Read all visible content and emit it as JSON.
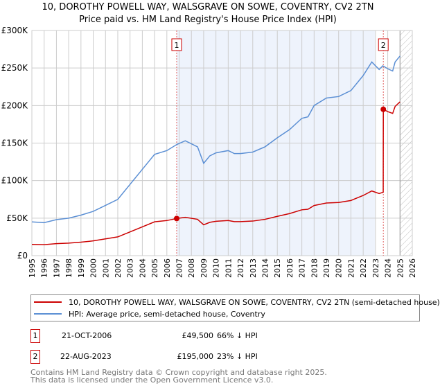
{
  "title": "10, DOROTHY POWELL WAY, WALSGRAVE ON SOWE, COVENTRY, CV2 2TN",
  "subtitle": "Price paid vs. HM Land Registry's House Price Index (HPI)",
  "chart_data": {
    "type": "line",
    "title": "10, DOROTHY POWELL WAY, WALSGRAVE ON SOWE, COVENTRY, CV2 2TN",
    "subtitle": "Price paid vs. HM Land Registry's House Price Index (HPI)",
    "xlim": [
      1995,
      2026
    ],
    "ylim": [
      0,
      300000
    ],
    "yticks": [
      0,
      50000,
      100000,
      150000,
      200000,
      250000,
      300000
    ],
    "ytick_labels": [
      "£0",
      "£50K",
      "£100K",
      "£150K",
      "£200K",
      "£250K",
      "£300K"
    ],
    "xticks": [
      "1995",
      "1996",
      "1997",
      "1998",
      "1999",
      "2000",
      "2001",
      "2002",
      "2003",
      "2004",
      "2005",
      "2006",
      "2007",
      "2008",
      "2009",
      "2010",
      "2011",
      "2012",
      "2013",
      "2014",
      "2015",
      "2016",
      "2017",
      "2018",
      "2019",
      "2020",
      "2021",
      "2022",
      "2023",
      "2024",
      "2025",
      "2026"
    ],
    "grid": true,
    "shaded_range": [
      2006.8,
      2022.95
    ],
    "hatched_from": 2025.0,
    "colors": {
      "price": "#cc0000",
      "hpi": "#5b8fd4",
      "shade": "#eef3fc"
    },
    "series": [
      {
        "name": "10, DOROTHY POWELL WAY, WALSGRAVE ON SOWE, COVENTRY, CV2 2TN (semi-detached house)",
        "x": [
          1995,
          1996,
          1997,
          1998,
          1999,
          2000,
          2001,
          2002,
          2003,
          2004,
          2005,
          2006,
          2006.8,
          2007.5,
          2008.5,
          2009,
          2009.5,
          2010,
          2011,
          2011.5,
          2012,
          2013,
          2014,
          2015,
          2016,
          2017,
          2017.5,
          2018,
          2019,
          2020,
          2021,
          2022,
          2022.7,
          2023.3,
          2023.63,
          2023.64,
          2024,
          2024.4,
          2024.6,
          2025
        ],
        "y": [
          15000,
          14700,
          16000,
          16700,
          18000,
          19700,
          22400,
          25000,
          31700,
          38400,
          45100,
          46800,
          49500,
          51100,
          48400,
          41100,
          44400,
          45800,
          46800,
          45400,
          45400,
          46100,
          48400,
          52400,
          56100,
          61100,
          61800,
          66800,
          70100,
          70800,
          73500,
          80200,
          86200,
          82800,
          84500,
          195000,
          191900,
          189500,
          198800,
          205000
        ]
      },
      {
        "name": "HPI: Average price, semi-detached house, Coventry",
        "x": [
          1995,
          1996,
          1997,
          1998,
          1999,
          2000,
          2001,
          2002,
          2003,
          2004,
          2005,
          2006,
          2006.8,
          2007.5,
          2008.5,
          2009,
          2009.5,
          2010,
          2011,
          2011.5,
          2012,
          2013,
          2014,
          2015,
          2016,
          2017,
          2017.5,
          2018,
          2019,
          2020,
          2021,
          2022,
          2022.7,
          2023.3,
          2023.6,
          2024,
          2024.4,
          2024.6,
          2025
        ],
        "y": [
          45000,
          44000,
          48000,
          50000,
          54000,
          59000,
          67000,
          75000,
          95000,
          115000,
          135000,
          140000,
          148000,
          153000,
          145000,
          123000,
          133000,
          137000,
          140000,
          136000,
          136000,
          138000,
          145000,
          157000,
          168000,
          183000,
          185000,
          200000,
          210000,
          212000,
          220000,
          240000,
          258000,
          248000,
          253000,
          249000,
          246000,
          258000,
          266000
        ]
      }
    ],
    "annotations": [
      {
        "label": "1",
        "x": 2006.8,
        "y": 49500
      },
      {
        "label": "2",
        "x": 2023.64,
        "y": 195000
      }
    ]
  },
  "legend": {
    "price": "10, DOROTHY POWELL WAY, WALSGRAVE ON SOWE, COVENTRY, CV2 2TN (semi-detached house)",
    "hpi": "HPI: Average price, semi-detached house, Coventry"
  },
  "sales": [
    {
      "num": "1",
      "date": "21-OCT-2006",
      "price": "£49,500",
      "hpi": "66% ↓ HPI"
    },
    {
      "num": "2",
      "date": "22-AUG-2023",
      "price": "£195,000",
      "hpi": "23% ↓ HPI"
    }
  ],
  "footer": [
    "Contains HM Land Registry data © Crown copyright and database right 2025.",
    "This data is licensed under the Open Government Licence v3.0."
  ]
}
